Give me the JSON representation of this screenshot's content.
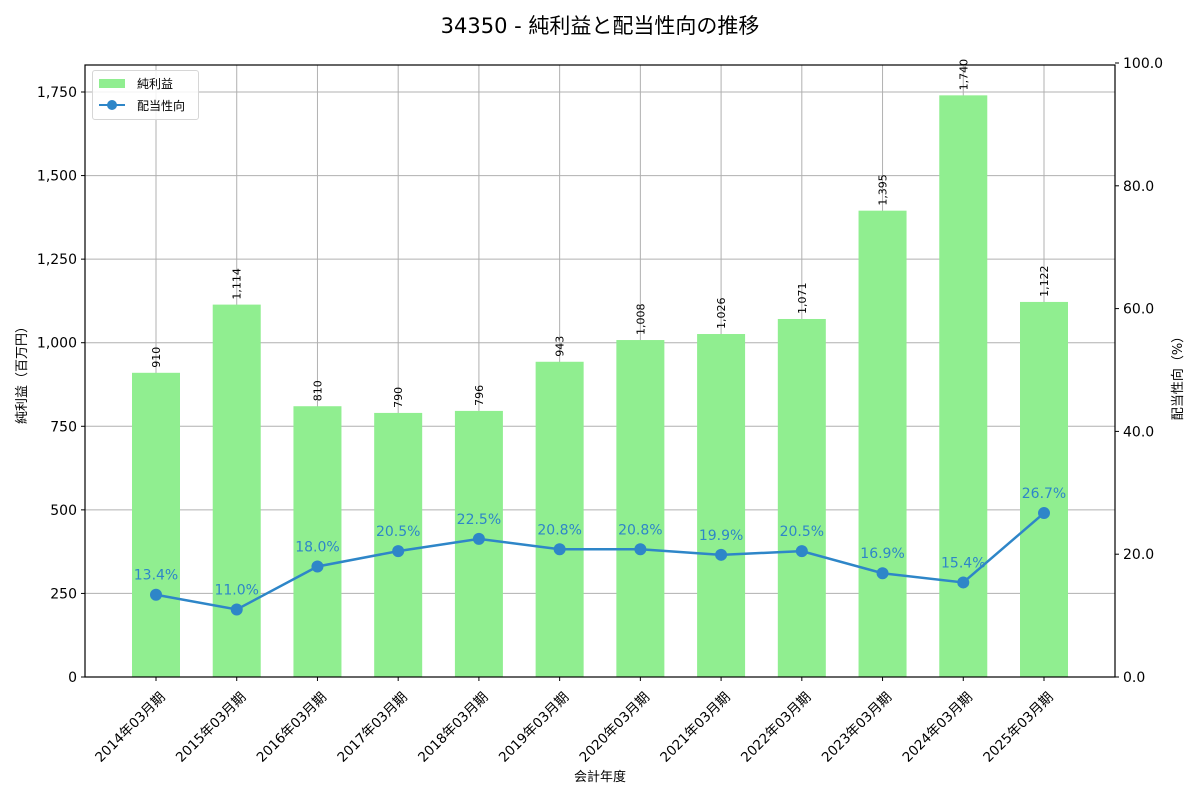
{
  "title": "34350 - 純利益と配当性向の推移",
  "legend": {
    "bar_label": "純利益",
    "line_label": "配当性向"
  },
  "axes": {
    "xlabel": "会計年度",
    "ylabel_left": "純利益（百万円）",
    "ylabel_right": "配当性向（%）",
    "left_ticks": [
      "0",
      "250",
      "500",
      "750",
      "1,000",
      "1,250",
      "1,500",
      "1,750"
    ],
    "right_ticks": [
      "0.0",
      "20.0",
      "40.0",
      "60.0",
      "80.0",
      "100.0"
    ]
  },
  "colors": {
    "bar": "#90ee90",
    "line": "#2e86c8",
    "grid": "#b0b0b0"
  },
  "chart_data": {
    "type": "bar+line",
    "title": "34350 - 純利益と配当性向の推移",
    "xlabel": "会計年度",
    "ylabel": "純利益（百万円）",
    "ylabel_right": "配当性向（%）",
    "categories": [
      "2014年03月期",
      "2015年03月期",
      "2016年03月期",
      "2017年03月期",
      "2018年03月期",
      "2019年03月期",
      "2020年03月期",
      "2021年03月期",
      "2022年03月期",
      "2023年03月期",
      "2024年03月期",
      "2025年03月期"
    ],
    "series": [
      {
        "name": "純利益",
        "type": "bar",
        "axis": "left",
        "values": [
          910,
          1114,
          810,
          790,
          796,
          943,
          1008,
          1026,
          1071,
          1395,
          1740,
          1122
        ],
        "labels": [
          "910",
          "1,114",
          "810",
          "790",
          "796",
          "943",
          "1,008",
          "1,026",
          "1,071",
          "1,395",
          "1,740",
          "1,122"
        ]
      },
      {
        "name": "配当性向",
        "type": "line",
        "axis": "right",
        "values": [
          13.4,
          11.0,
          18.0,
          20.5,
          22.5,
          20.8,
          20.8,
          19.9,
          20.5,
          16.9,
          15.4,
          26.7
        ],
        "labels": [
          "13.4%",
          "11.0%",
          "18.0%",
          "20.5%",
          "22.5%",
          "20.8%",
          "20.8%",
          "19.9%",
          "20.5%",
          "16.9%",
          "15.4%",
          "26.7%"
        ]
      }
    ],
    "ylim": [
      0,
      1830
    ],
    "ylim_right": [
      0,
      100
    ],
    "grid": true,
    "legend_position": "upper left"
  }
}
